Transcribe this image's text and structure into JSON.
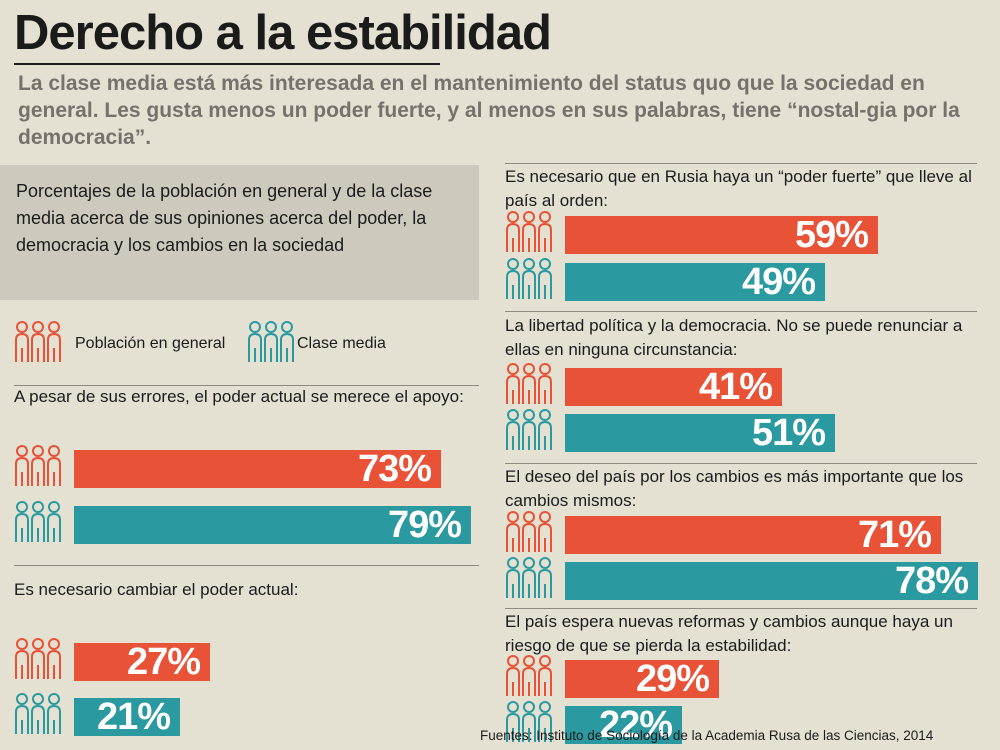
{
  "title": "Derecho a la estabilidad",
  "subtitle": "La clase media está más interesada en el mantenimiento del status quo que la sociedad en general. Les gusta menos un poder fuerte, y al menos en sus palabras, tiene “nostal-gia por la democracia”.",
  "intro": "Porcentajes de la población en general y de la clase media acerca de sus opiniones acerca del poder, la democracia y los cambios en la sociedad",
  "legend": {
    "general": "Población en general",
    "media": "Clase media"
  },
  "source": "Fuentes: Instituto de Sociología de la Academia Rusa de las Ciencias, 2014",
  "colors": {
    "general": "#e85236",
    "media": "#2a9aa0",
    "text": "#1b1b1b",
    "subtitle": "#76716b"
  },
  "icons": {
    "general": "people-outline-icon",
    "media": "people-outline-icon"
  },
  "chart_data": {
    "type": "bar",
    "unit": "%",
    "series_names": [
      "Población en general",
      "Clase media"
    ],
    "questions": [
      {
        "text": "A pesar de sus errores, el poder actual se merece el apoyo:",
        "general": 73,
        "media": 79,
        "general_label": "73%",
        "media_label": "79%"
      },
      {
        "text": "Es necesario cambiar el poder actual:",
        "general": 27,
        "media": 21,
        "general_label": "27%",
        "media_label": "21%"
      },
      {
        "text": "Es necesario que en Rusia haya un “poder fuerte” que lleve al país al orden:",
        "general": 59,
        "media": 49,
        "general_label": "59%",
        "media_label": "49%"
      },
      {
        "text": "La libertad política y la democracia. No se puede renunciar a ellas en ninguna circunstancia:",
        "general": 41,
        "media": 51,
        "general_label": "41%",
        "media_label": "51%"
      },
      {
        "text": "El deseo del país por los cambios es más importante que los cambios mismos:",
        "general": 71,
        "media": 78,
        "general_label": "71%",
        "media_label": "78%"
      },
      {
        "text": "El país espera nuevas reformas y cambios aunque haya un riesgo de que se pierda la estabilidad:",
        "general": 29,
        "media": 22,
        "general_label": "29%",
        "media_label": "22%"
      }
    ]
  }
}
